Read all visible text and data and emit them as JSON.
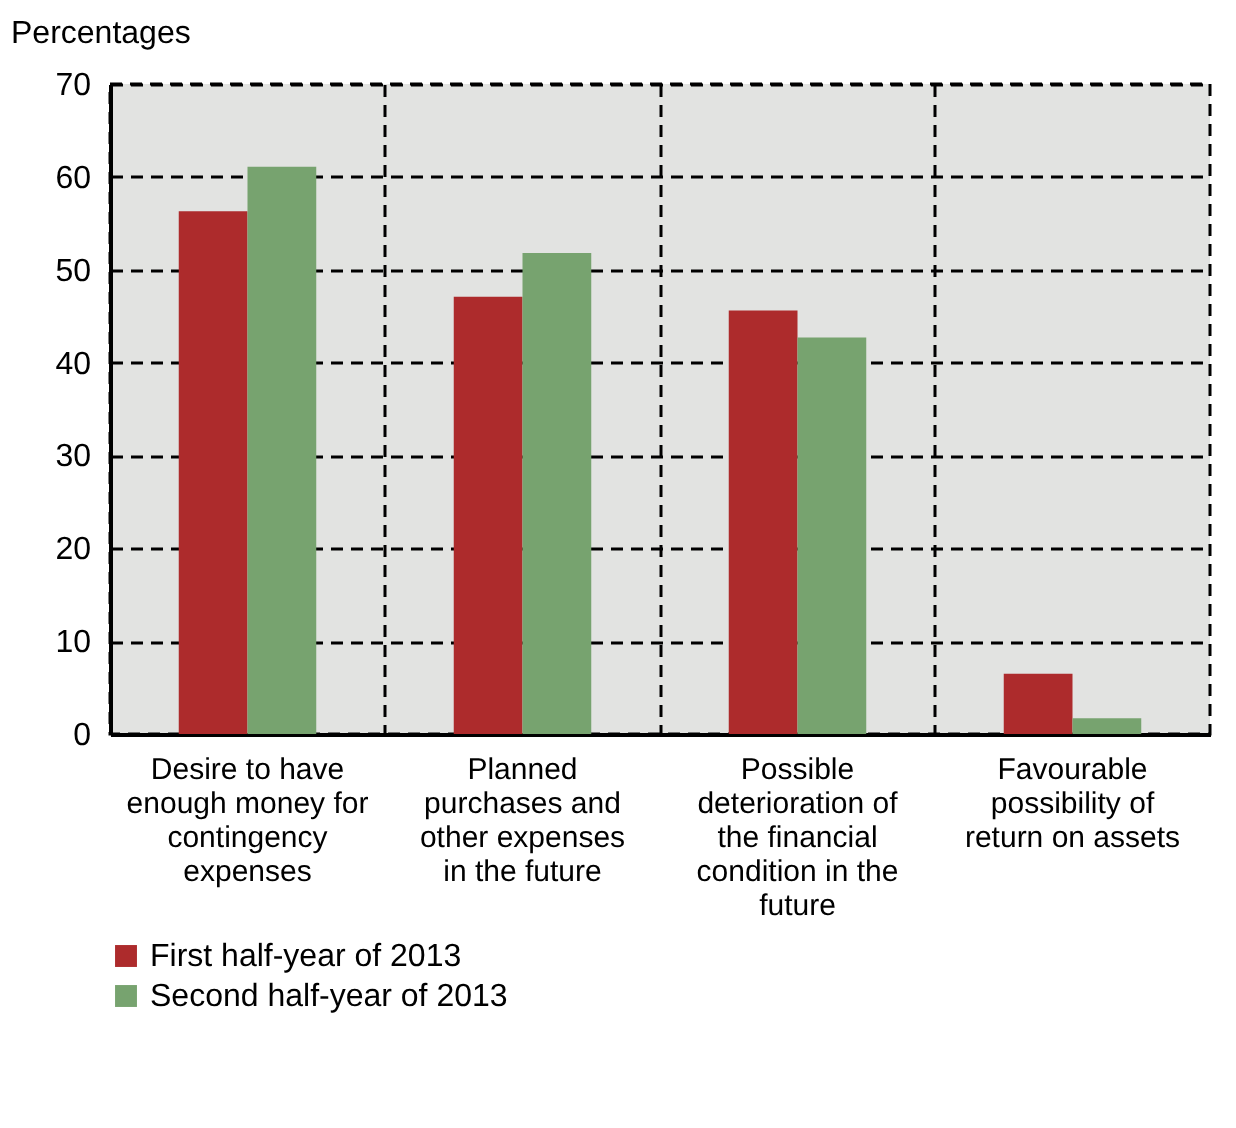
{
  "chart_data": {
    "type": "bar",
    "ylabel": "Percentages",
    "categories": [
      "Desire to have enough money for contingency expenses",
      "Planned purchases and other expenses in the future",
      "Possible deterioration of the financial condition in the future",
      "Favourable possibility of return on assets"
    ],
    "series": [
      {
        "name": "First half-year of 2013",
        "color": "#ad2b2c",
        "values": [
          56.3,
          47.1,
          45.6,
          6.5
        ]
      },
      {
        "name": "Second half-year of 2013",
        "color": "#77a36f",
        "values": [
          61.1,
          51.8,
          42.7,
          1.7
        ]
      }
    ],
    "ylim": [
      0,
      70
    ],
    "yticks": [
      0,
      10,
      20,
      30,
      40,
      50,
      60,
      70
    ],
    "grid": true,
    "legend": "bottom"
  }
}
